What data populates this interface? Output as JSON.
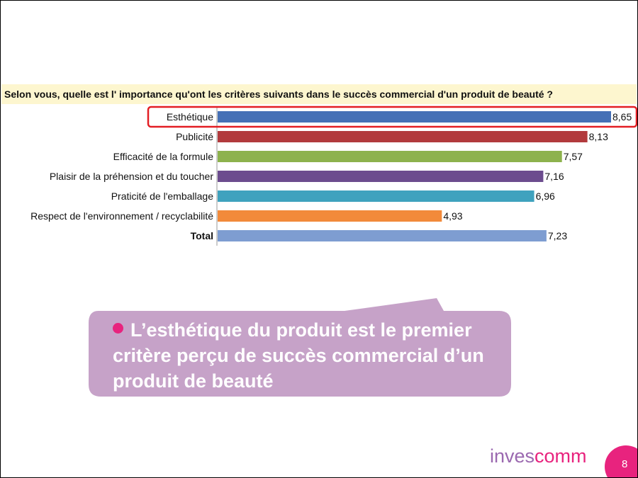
{
  "question": "Selon vous, quelle est l' importance qu'ont les critères suivants dans le succès commercial d'un produit de beauté ?",
  "chart_data": {
    "type": "bar",
    "orientation": "horizontal",
    "categories": [
      "Esthétique",
      "Publicité",
      "Efficacité de la formule",
      "Plaisir de la préhension et du toucher",
      "Praticité de l'emballage",
      "Respect de l'environnement / recyclabilité",
      "Total"
    ],
    "values": [
      8.65,
      8.13,
      7.57,
      7.16,
      6.96,
      4.93,
      7.23
    ],
    "value_labels": [
      "8,65",
      "8,13",
      "7,57",
      "7,16",
      "6,96",
      "4,93",
      "7,23"
    ],
    "bold_categories": [
      "Total"
    ],
    "highlighted_category": "Esthétique",
    "colors": [
      "#4570b6",
      "#b23a3d",
      "#8db24d",
      "#6c4c8e",
      "#3fa2be",
      "#f28a3a",
      "#7e9dd1"
    ],
    "xlim": [
      0,
      8.65
    ],
    "grid": false,
    "legend": "none"
  },
  "callout": {
    "text": "L’esthétique du produit est le premier critère perçu de succès commercial d’un produit de beauté",
    "bubble_color": "#c6a2c8",
    "bullet_color": "#e8237e"
  },
  "logo": {
    "part1": "inves",
    "part2": "comm"
  },
  "page_number": "8",
  "colors": {
    "highlight_outline": "#e31e24",
    "brand_pink": "#e8237e",
    "brand_purple": "#9b69b0"
  }
}
